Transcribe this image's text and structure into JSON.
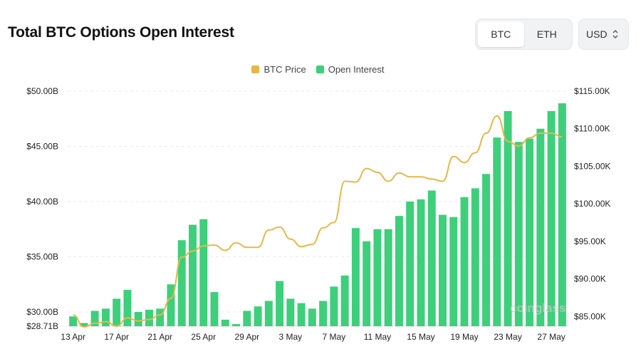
{
  "header": {
    "title": "Total BTC Options Open Interest",
    "tabs": [
      {
        "label": "BTC",
        "active": true
      },
      {
        "label": "ETH",
        "active": false
      }
    ],
    "currency": {
      "label": "USD",
      "icon": "chevron-updown-icon"
    }
  },
  "watermark": "coinglass",
  "colors": {
    "bar": "#3ecf7a",
    "line": "#e6b84a",
    "grid": "#e9ebee",
    "text": "#222222"
  },
  "chart_data": {
    "type": "bar",
    "title": "Total BTC Options Open Interest",
    "legend_position": "top-center",
    "grid": true,
    "x": [
      "13 Apr",
      "14 Apr",
      "15 Apr",
      "16 Apr",
      "17 Apr",
      "18 Apr",
      "19 Apr",
      "20 Apr",
      "21 Apr",
      "22 Apr",
      "23 Apr",
      "24 Apr",
      "25 Apr",
      "26 Apr",
      "27 Apr",
      "28 Apr",
      "29 Apr",
      "30 Apr",
      "1 May",
      "2 May",
      "3 May",
      "4 May",
      "5 May",
      "6 May",
      "7 May",
      "8 May",
      "9 May",
      "10 May",
      "11 May",
      "12 May",
      "13 May",
      "14 May",
      "15 May",
      "16 May",
      "17 May",
      "18 May",
      "19 May",
      "20 May",
      "21 May",
      "22 May",
      "23 May",
      "24 May",
      "25 May",
      "26 May",
      "27 May",
      "28 May"
    ],
    "x_tick_labels": [
      "13 Apr",
      "17 Apr",
      "21 Apr",
      "25 Apr",
      "29 Apr",
      "3 May",
      "7 May",
      "11 May",
      "15 May",
      "19 May",
      "23 May",
      "27 May"
    ],
    "series": [
      {
        "name": "Open Interest",
        "type": "bar",
        "axis": "left",
        "color": "#3ecf7a",
        "values": [
          29.6,
          29.0,
          30.1,
          30.3,
          31.2,
          32.0,
          30.0,
          30.2,
          30.3,
          32.5,
          36.5,
          37.9,
          38.4,
          31.8,
          29.3,
          28.9,
          30.1,
          30.5,
          31.0,
          32.8,
          31.2,
          30.8,
          30.3,
          31.0,
          32.3,
          33.3,
          37.6,
          36.4,
          37.5,
          37.5,
          38.7,
          40.0,
          40.2,
          41.0,
          38.8,
          38.6,
          40.4,
          41.2,
          42.5,
          45.8,
          48.2,
          45.4,
          45.7,
          46.6,
          48.2,
          48.9
        ]
      },
      {
        "name": "BTC Price",
        "type": "line",
        "axis": "right",
        "color": "#e6b84a",
        "values": [
          85.2,
          83.6,
          84.1,
          84.3,
          83.7,
          84.8,
          84.4,
          84.6,
          85.2,
          87.4,
          92.9,
          93.7,
          94.4,
          94.5,
          93.8,
          94.8,
          94.2,
          94.2,
          96.5,
          96.9,
          95.3,
          94.3,
          94.6,
          96.8,
          97.5,
          103.0,
          102.9,
          104.7,
          104.2,
          103.0,
          104.1,
          103.6,
          103.6,
          103.3,
          103.0,
          106.3,
          105.5,
          106.8,
          109.4,
          111.7,
          108.3,
          107.7,
          108.8,
          109.4,
          109.4,
          108.9
        ]
      }
    ],
    "left_axis": {
      "ylim": [
        28.71,
        50.0
      ],
      "ticks": [
        "$50.00B",
        "$45.00B",
        "$40.00B",
        "$35.00B",
        "$30.00B",
        "$28.71B"
      ],
      "tick_values": [
        50,
        45,
        40,
        35,
        30,
        28.71
      ]
    },
    "right_axis": {
      "ylim": [
        83.7,
        115.0
      ],
      "ticks": [
        "$115.00K",
        "$110.00K",
        "$105.00K",
        "$100.00K",
        "$95.00K",
        "$90.00K",
        "$85.00K"
      ],
      "tick_values": [
        115,
        110,
        105,
        100,
        95,
        90,
        85
      ]
    }
  }
}
